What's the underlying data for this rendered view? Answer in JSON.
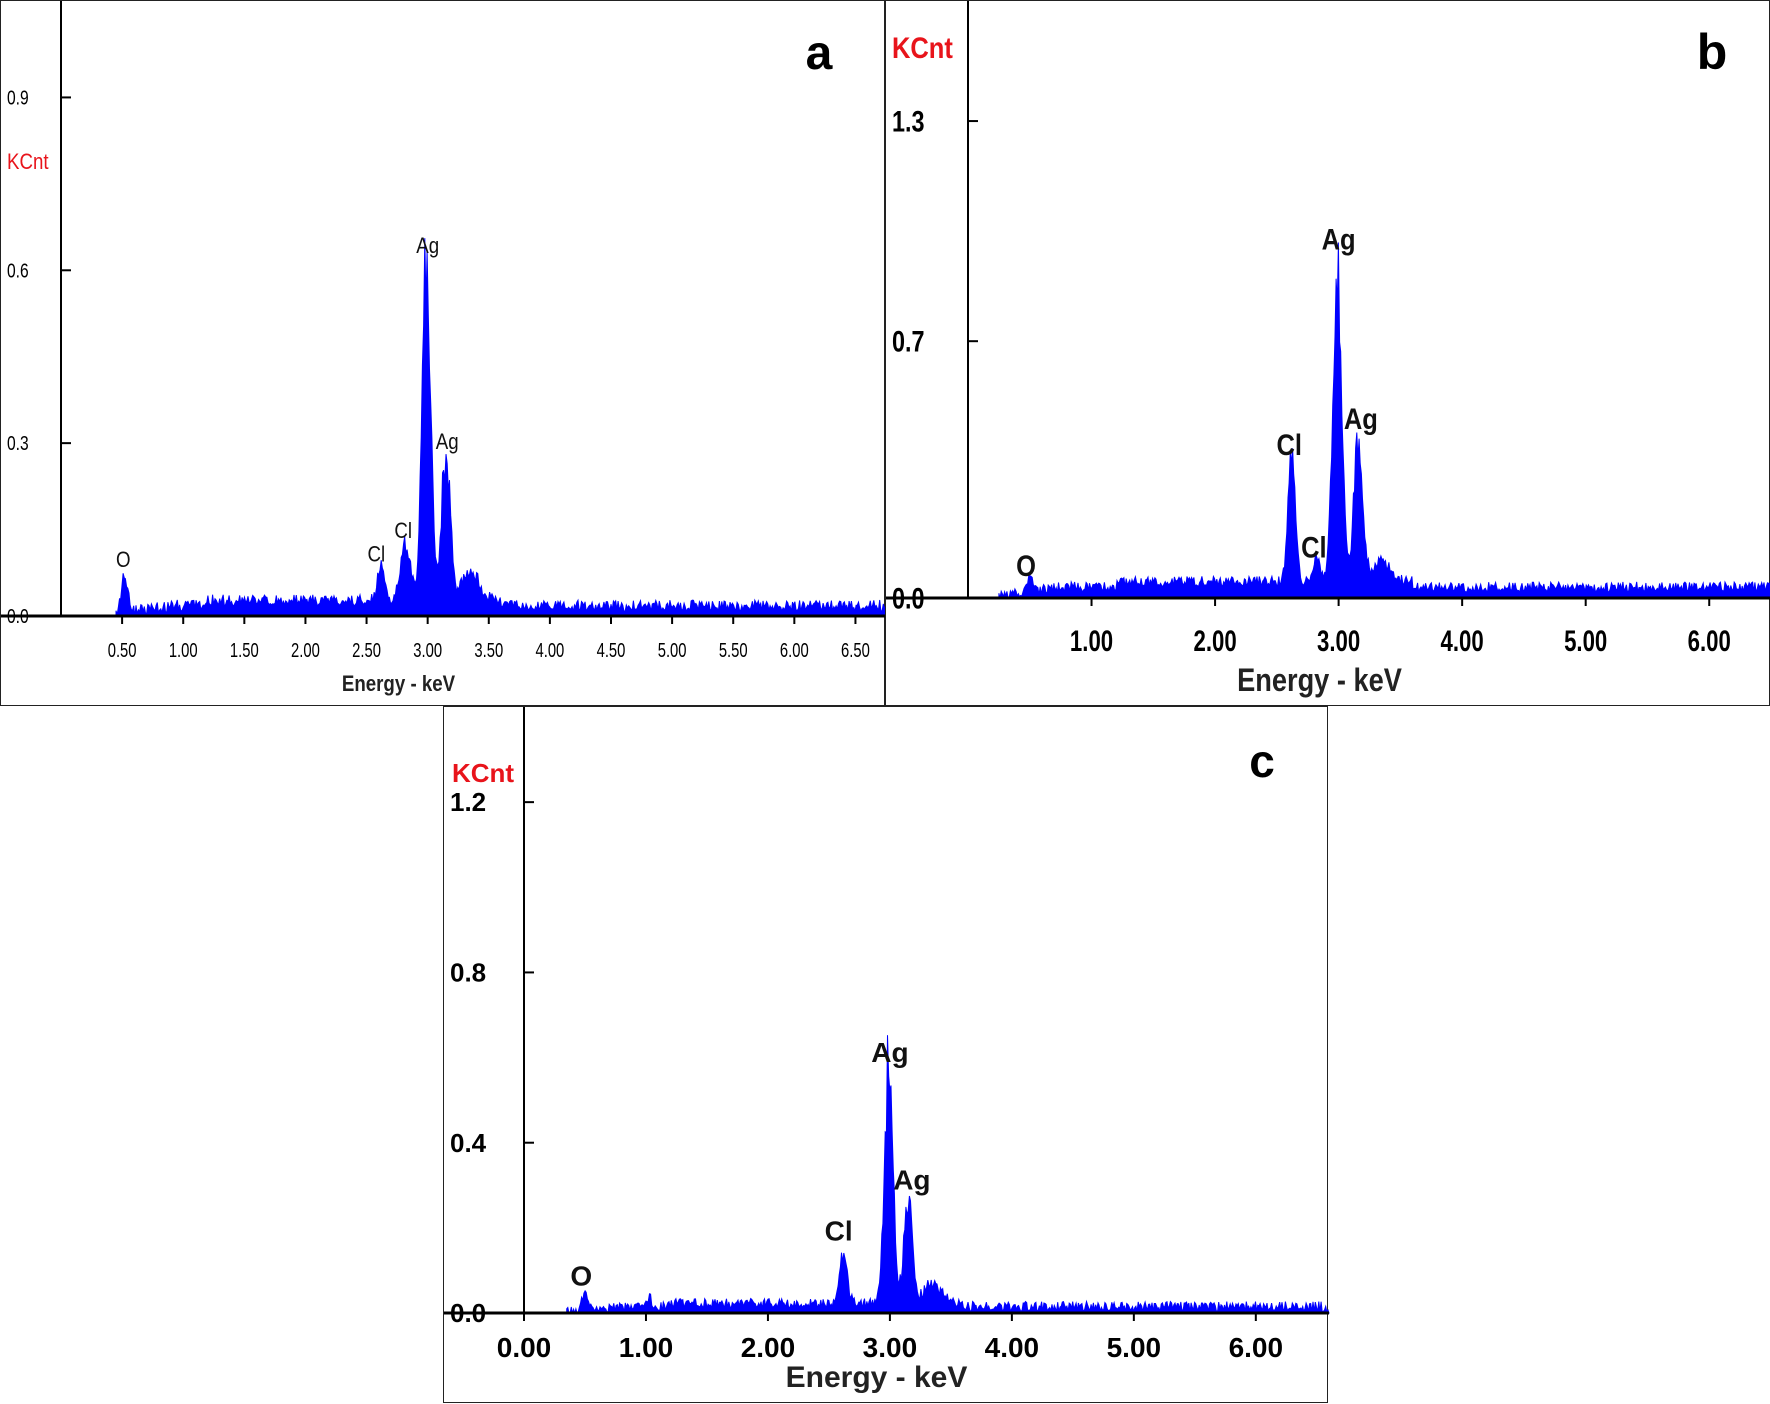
{
  "chart_data": [
    {
      "type": "area",
      "panel_letter": "a",
      "ylabel": "KCnt",
      "xlabel": "Energy - keV",
      "xlim": [
        0.0,
        6.75
      ],
      "ylim": [
        0.0,
        1.05
      ],
      "xticks": [
        "0.50",
        "1.00",
        "1.50",
        "2.00",
        "2.50",
        "3.00",
        "3.50",
        "4.00",
        "4.50",
        "5.00",
        "5.50",
        "6.00",
        "6.50"
      ],
      "yticks": [
        "0.0",
        "0.3",
        "0.6",
        "0.9"
      ],
      "baseline": 0.018,
      "noise": 0.01,
      "spectrum_start": 0.45,
      "peaks": [
        {
          "x": 0.52,
          "y": 0.07,
          "w": 0.025
        },
        {
          "x": 1.05,
          "y": 0.006,
          "w": 0.03
        },
        {
          "x": 2.62,
          "y": 0.06,
          "w": 0.03
        },
        {
          "x": 2.82,
          "y": 0.1,
          "w": 0.04
        },
        {
          "x": 2.99,
          "y": 0.6,
          "w": 0.035
        },
        {
          "x": 3.15,
          "y": 0.26,
          "w": 0.035
        },
        {
          "x": 3.35,
          "y": 0.05,
          "w": 0.07
        }
      ],
      "annotations": [
        {
          "text": "O",
          "x": 0.51,
          "y": 0.085
        },
        {
          "text": "Cl",
          "x": 2.58,
          "y": 0.095
        },
        {
          "text": "Cl",
          "x": 2.8,
          "y": 0.135
        },
        {
          "text": "Ag",
          "x": 3.0,
          "y": 0.63
        },
        {
          "text": "Ag",
          "x": 3.16,
          "y": 0.29
        }
      ],
      "peak_values": [
        {
          "element": "O",
          "energy_keV": 0.52,
          "kcnt": 0.07
        },
        {
          "element": "Cl",
          "energy_keV": 2.62,
          "kcnt": 0.06
        },
        {
          "element": "Cl",
          "energy_keV": 2.82,
          "kcnt": 0.1
        },
        {
          "element": "Ag",
          "energy_keV": 2.99,
          "kcnt": 0.63
        },
        {
          "element": "Ag",
          "energy_keV": 3.15,
          "kcnt": 0.28
        }
      ],
      "label_style": "condensed",
      "color": "#0000ff"
    },
    {
      "type": "area",
      "panel_letter": "b",
      "ylabel": "KCnt",
      "xlabel": "Energy - keV",
      "xlim": [
        0.0,
        6.5
      ],
      "ylim": [
        0.0,
        1.6
      ],
      "xticks": [
        "1.00",
        "2.00",
        "3.00",
        "4.00",
        "5.00",
        "6.00"
      ],
      "yticks": [
        "0.0",
        "0.7",
        "1.3"
      ],
      "baseline": 0.03,
      "noise": 0.014,
      "spectrum_start": 0.25,
      "peaks": [
        {
          "x": 0.5,
          "y": 0.03,
          "w": 0.025
        },
        {
          "x": 2.62,
          "y": 0.34,
          "w": 0.03
        },
        {
          "x": 2.82,
          "y": 0.06,
          "w": 0.03
        },
        {
          "x": 2.99,
          "y": 0.86,
          "w": 0.035
        },
        {
          "x": 3.16,
          "y": 0.4,
          "w": 0.035
        },
        {
          "x": 3.35,
          "y": 0.06,
          "w": 0.07
        }
      ],
      "annotations": [
        {
          "text": "O",
          "x": 0.47,
          "y": 0.06
        },
        {
          "text": "Cl",
          "x": 2.6,
          "y": 0.39
        },
        {
          "text": "Cl",
          "x": 2.8,
          "y": 0.11
        },
        {
          "text": "Ag",
          "x": 3.0,
          "y": 0.95
        },
        {
          "text": "Ag",
          "x": 3.18,
          "y": 0.46
        }
      ],
      "peak_values": [
        {
          "element": "O",
          "energy_keV": 0.5,
          "kcnt": 0.06
        },
        {
          "element": "Cl",
          "energy_keV": 2.62,
          "kcnt": 0.37
        },
        {
          "element": "Cl",
          "energy_keV": 2.82,
          "kcnt": 0.09
        },
        {
          "element": "Ag",
          "energy_keV": 2.99,
          "kcnt": 0.89
        },
        {
          "element": "Ag",
          "energy_keV": 3.16,
          "kcnt": 0.43
        }
      ],
      "label_style": "condensed",
      "color": "#0000ff"
    },
    {
      "type": "area",
      "panel_letter": "c",
      "ylabel": "KCnt",
      "xlabel": "Energy - keV",
      "xlim": [
        0.0,
        6.6
      ],
      "ylim": [
        0.0,
        1.4
      ],
      "xticks": [
        "0.00",
        "1.00",
        "2.00",
        "3.00",
        "4.00",
        "5.00",
        "6.00"
      ],
      "yticks": [
        "0.0",
        "0.4",
        "0.8",
        "1.2"
      ],
      "baseline": 0.015,
      "noise": 0.012,
      "spectrum_start": 0.35,
      "peaks": [
        {
          "x": 0.5,
          "y": 0.04,
          "w": 0.025
        },
        {
          "x": 1.03,
          "y": 0.04,
          "w": 0.012
        },
        {
          "x": 2.62,
          "y": 0.13,
          "w": 0.03
        },
        {
          "x": 2.99,
          "y": 0.56,
          "w": 0.035
        },
        {
          "x": 3.15,
          "y": 0.24,
          "w": 0.035
        },
        {
          "x": 3.35,
          "y": 0.05,
          "w": 0.07
        }
      ],
      "annotations": [
        {
          "text": "O",
          "x": 0.47,
          "y": 0.065
        },
        {
          "text": "Cl",
          "x": 2.58,
          "y": 0.17
        },
        {
          "text": "Ag",
          "x": 3.0,
          "y": 0.59
        },
        {
          "text": "Ag",
          "x": 3.18,
          "y": 0.29
        }
      ],
      "peak_values": [
        {
          "element": "O",
          "energy_keV": 0.5,
          "kcnt": 0.055
        },
        {
          "element": "Cl",
          "energy_keV": 2.62,
          "kcnt": 0.15
        },
        {
          "element": "Ag",
          "energy_keV": 2.99,
          "kcnt": 0.58
        },
        {
          "element": "Ag",
          "energy_keV": 3.15,
          "kcnt": 0.26
        }
      ],
      "label_style": "bold",
      "color": "#0000ff"
    }
  ]
}
